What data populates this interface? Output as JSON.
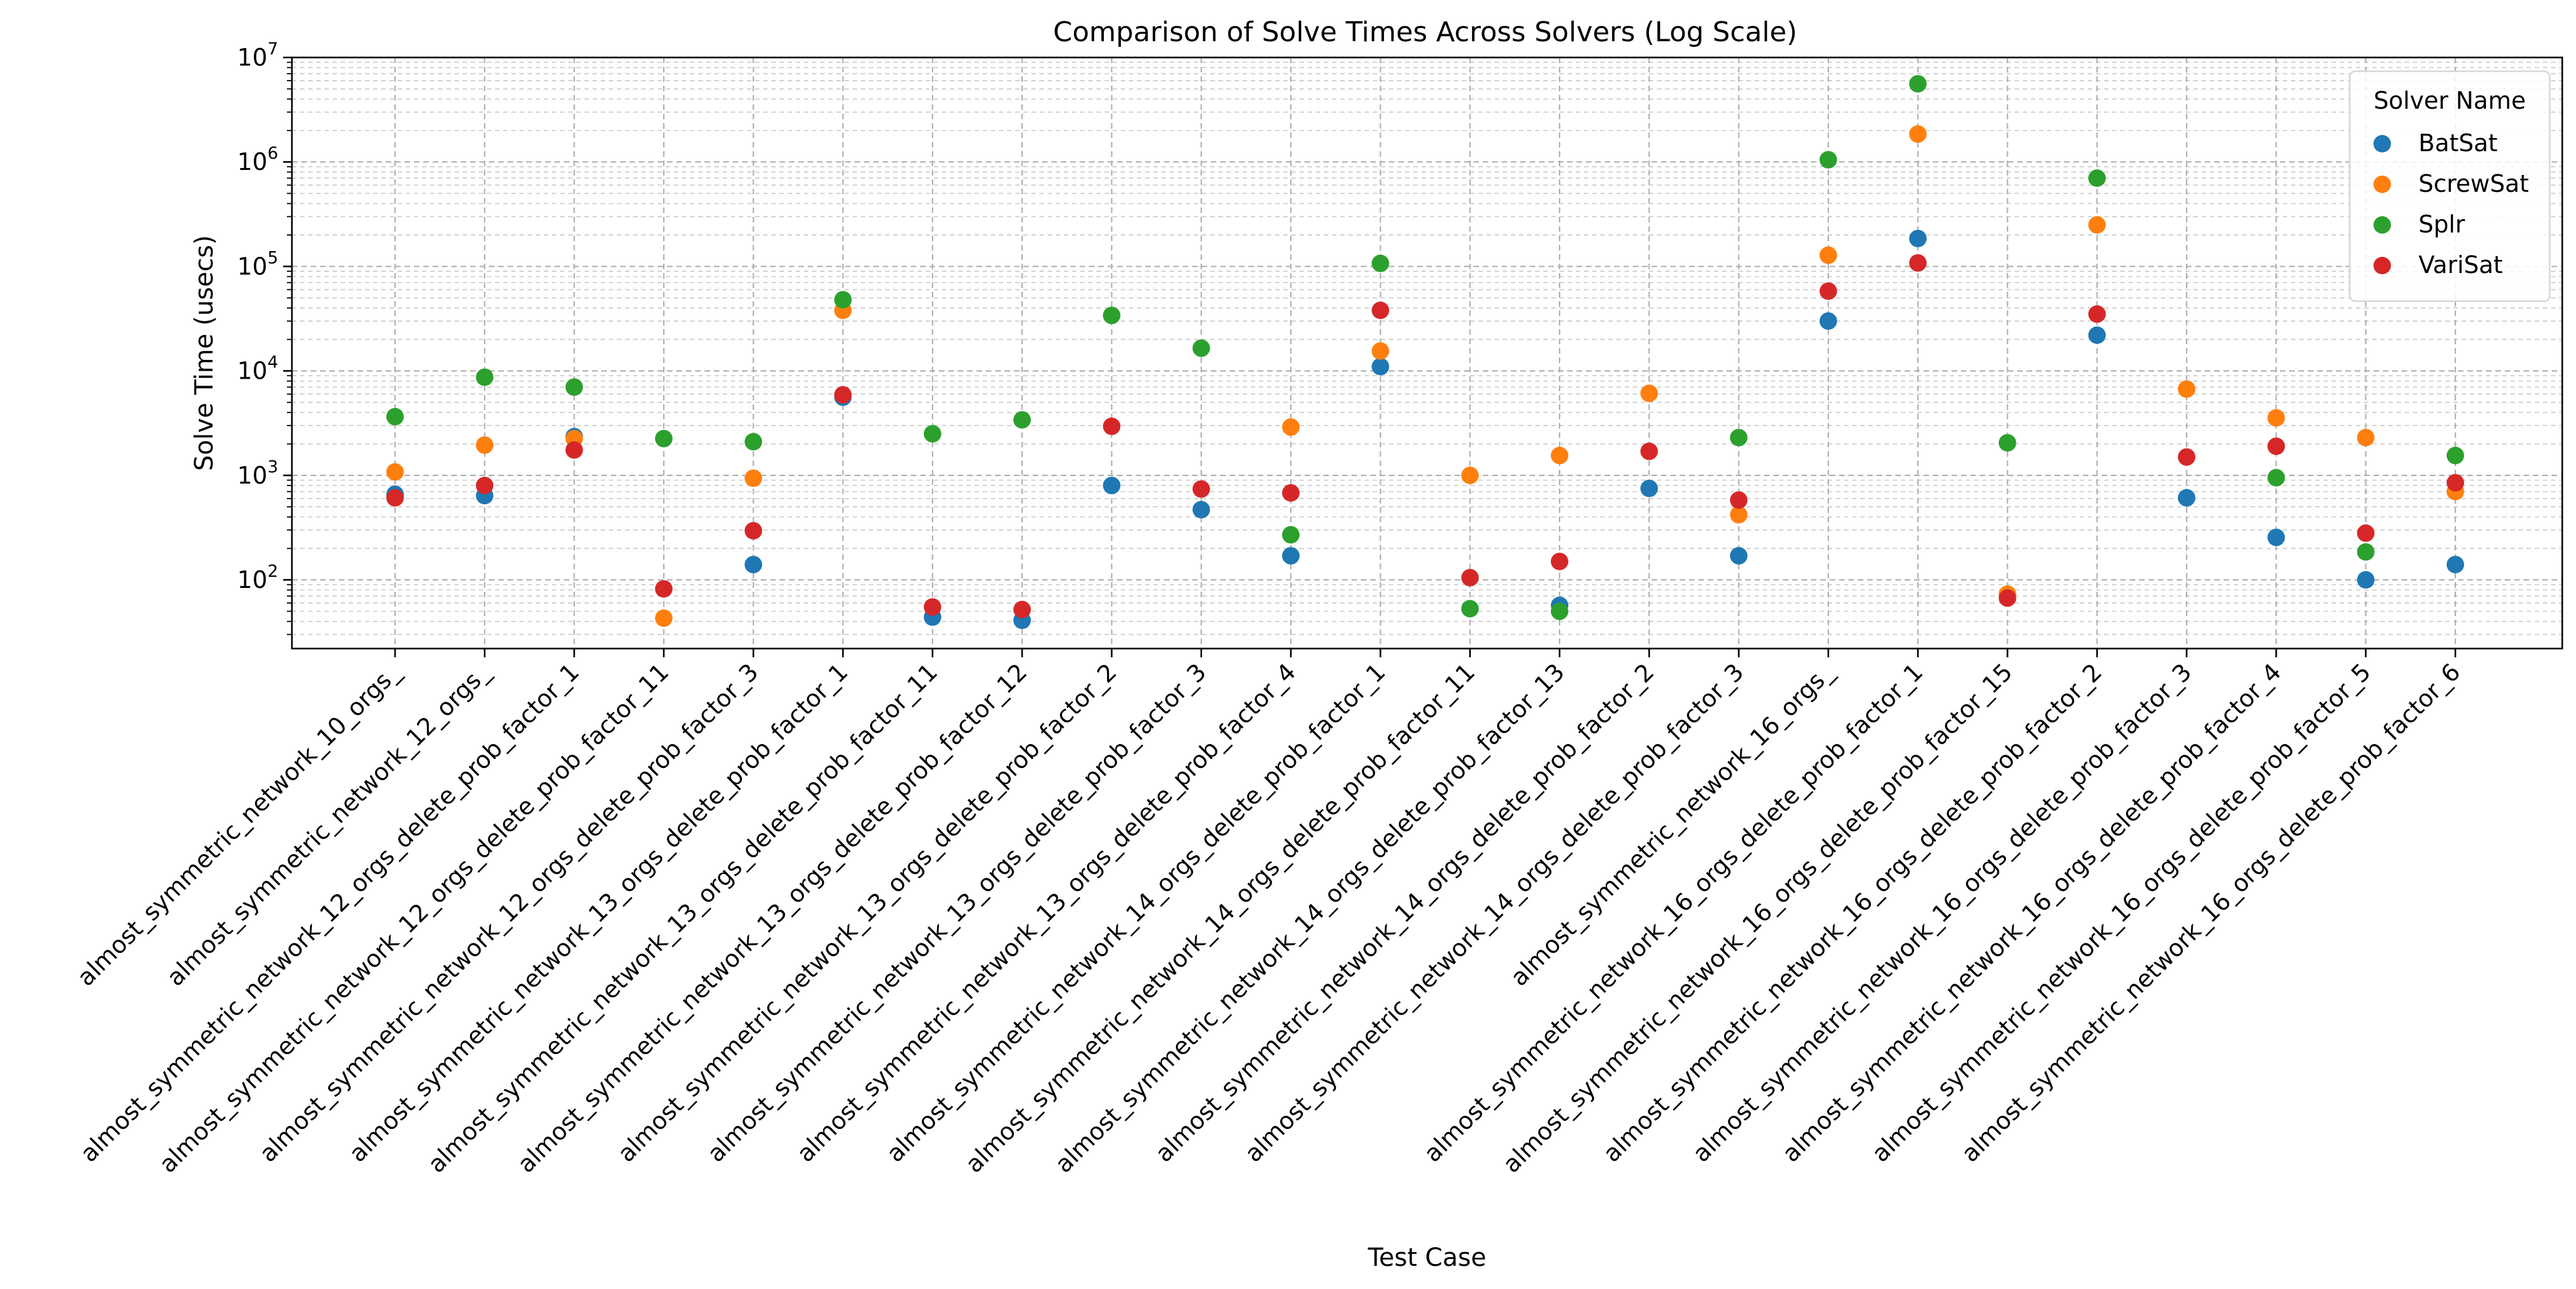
{
  "chart_data": {
    "type": "scatter",
    "title": "Comparison of Solve Times Across Solvers (Log Scale)",
    "xlabel": "Test Case",
    "ylabel": "Solve Time (usecs)",
    "y_scale": "log",
    "ylim": [
      22,
      10000000
    ],
    "y_ticks": [
      {
        "value": 100,
        "base": "10",
        "exp": "2"
      },
      {
        "value": 1000,
        "base": "10",
        "exp": "3"
      },
      {
        "value": 10000,
        "base": "10",
        "exp": "4"
      },
      {
        "value": 100000,
        "base": "10",
        "exp": "5"
      },
      {
        "value": 1000000,
        "base": "10",
        "exp": "6"
      },
      {
        "value": 10000000,
        "base": "10",
        "exp": "7"
      }
    ],
    "grid": true,
    "legend": {
      "title": "Solver Name",
      "placement": "top-right"
    },
    "categories": [
      "almost_symmetric_network_10_orgs_",
      "almost_symmetric_network_12_orgs_",
      "almost_symmetric_network_12_orgs_delete_prob_factor_1",
      "almost_symmetric_network_12_orgs_delete_prob_factor_11",
      "almost_symmetric_network_12_orgs_delete_prob_factor_3",
      "almost_symmetric_network_13_orgs_delete_prob_factor_1",
      "almost_symmetric_network_13_orgs_delete_prob_factor_11",
      "almost_symmetric_network_13_orgs_delete_prob_factor_12",
      "almost_symmetric_network_13_orgs_delete_prob_factor_2",
      "almost_symmetric_network_13_orgs_delete_prob_factor_3",
      "almost_symmetric_network_13_orgs_delete_prob_factor_4",
      "almost_symmetric_network_14_orgs_delete_prob_factor_1",
      "almost_symmetric_network_14_orgs_delete_prob_factor_11",
      "almost_symmetric_network_14_orgs_delete_prob_factor_13",
      "almost_symmetric_network_14_orgs_delete_prob_factor_2",
      "almost_symmetric_network_14_orgs_delete_prob_factor_3",
      "almost_symmetric_network_16_orgs_",
      "almost_symmetric_network_16_orgs_delete_prob_factor_1",
      "almost_symmetric_network_16_orgs_delete_prob_factor_15",
      "almost_symmetric_network_16_orgs_delete_prob_factor_2",
      "almost_symmetric_network_16_orgs_delete_prob_factor_3",
      "almost_symmetric_network_16_orgs_delete_prob_factor_4",
      "almost_symmetric_network_16_orgs_delete_prob_factor_5",
      "almost_symmetric_network_16_orgs_delete_prob_factor_6"
    ],
    "series": [
      {
        "name": "BatSat",
        "color": "#1f77b4",
        "values": [
          660,
          640,
          2350,
          null,
          140,
          5600,
          44,
          41,
          800,
          470,
          170,
          11000,
          null,
          57,
          750,
          170,
          30000,
          185000,
          null,
          22000,
          610,
          255,
          100,
          140
        ]
      },
      {
        "name": "ScrewSat",
        "color": "#ff7f0e",
        "values": [
          1080,
          1950,
          2250,
          43,
          940,
          38000,
          null,
          null,
          null,
          null,
          2900,
          15500,
          1000,
          1550,
          6100,
          420,
          128000,
          1850000,
          73,
          250000,
          6700,
          3550,
          2300,
          700
        ]
      },
      {
        "name": "Splr",
        "color": "#2ca02c",
        "values": [
          3650,
          8700,
          7000,
          2250,
          2100,
          48000,
          2500,
          3400,
          34000,
          16500,
          270,
          107000,
          53,
          50,
          null,
          2300,
          1050000,
          5600000,
          2050,
          700000,
          null,
          950,
          185,
          1550
        ]
      },
      {
        "name": "VariSat",
        "color": "#d62728",
        "values": [
          610,
          800,
          1750,
          82,
          295,
          5900,
          55,
          52,
          2950,
          740,
          680,
          38000,
          105,
          150,
          1700,
          580,
          58000,
          108000,
          67,
          35000,
          1500,
          1900,
          280,
          850
        ]
      }
    ]
  }
}
